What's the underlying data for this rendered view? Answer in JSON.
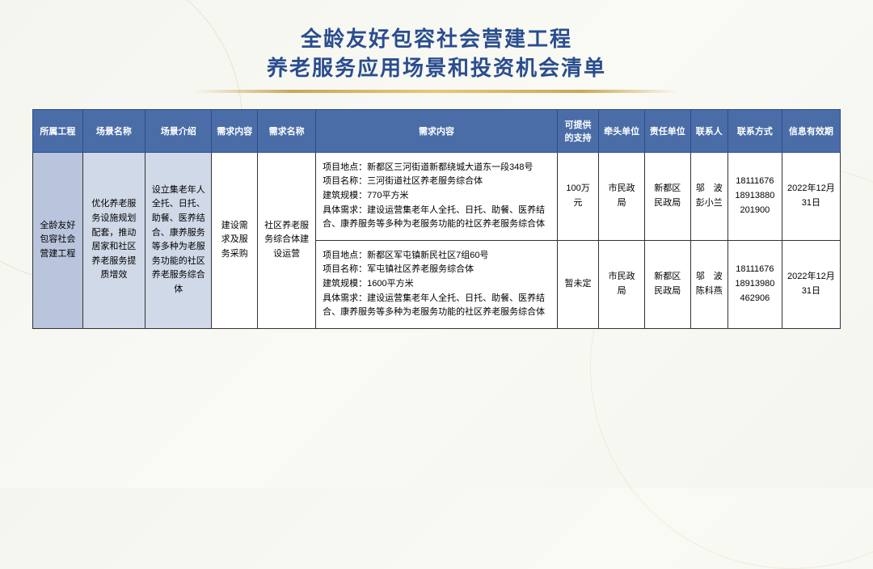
{
  "title_line1": "全龄友好包容社会营建工程",
  "title_line2": "养老服务应用场景和投资机会清单",
  "headers": {
    "project": "所属工程",
    "scene_name": "场景名称",
    "scene_intro": "场景介绍",
    "req_type": "需求内容",
    "req_name": "需求名称",
    "req_content": "需求内容",
    "support": "可提供的支持",
    "lead_unit": "牵头单位",
    "resp_unit": "责任单位",
    "contact": "联系人",
    "phone": "联系方式",
    "valid": "信息有效期"
  },
  "merged": {
    "project": "全龄友好包容社会营建工程",
    "scene_name": "优化养老服务设施规划配套，推动居家和社区养老服务提质增效",
    "scene_intro": "设立集老年人全托、日托、助餐、医养结合、康养服务等多种为老服务功能的社区养老服务综合体",
    "req_type": "建设需求及服务采购",
    "req_name": "社区养老服务综合体建设运营"
  },
  "rows": [
    {
      "content_lines": [
        "项目地点：新都区三河街道新都绕城大道东一段348号",
        "项目名称：三河街道社区养老服务综合体",
        "建筑规模：770平方米",
        "具体需求：建设运营集老年人全托、日托、助餐、医养结合、康养服务等多种为老服务功能的社区养老服务综合体"
      ],
      "support": "100万元",
      "lead_unit": "市民政局",
      "resp_unit": "新都区民政局",
      "contact": "邬　波 彭小兰",
      "phone": "18111676 18913880 201900",
      "valid": "2022年12月31日"
    },
    {
      "content_lines": [
        "项目地点：新都区军屯镇新民社区7组60号",
        "项目名称：军屯镇社区养老服务综合体",
        "建筑规模：1600平方米",
        "具体需求：建设运营集老年人全托、日托、助餐、医养结合、康养服务等多种为老服务功能的社区养老服务综合体"
      ],
      "support": "暂未定",
      "lead_unit": "市民政局",
      "resp_unit": "新都区民政局",
      "contact": "邬　波 陈科燕",
      "phone": "18111676 18913980 462906",
      "valid": "2022年12月31日"
    }
  ],
  "colors": {
    "header_bg": "#4a6da8",
    "title_color": "#2a4d8f",
    "divider_gold": "#c9a85a",
    "merged_bg1": "#b8c5dd",
    "merged_bg2": "#d0d9e8"
  }
}
